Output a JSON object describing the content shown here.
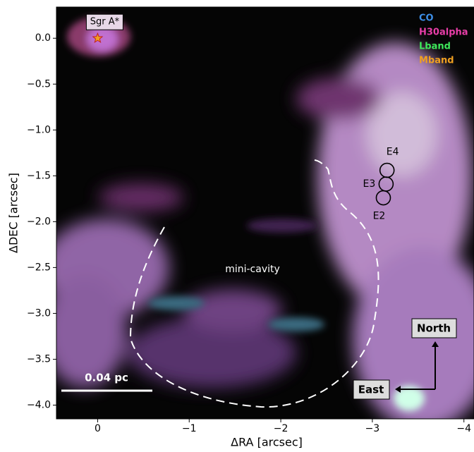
{
  "chart_data": {
    "type": "image",
    "xlabel": "ΔRA [arcsec]",
    "ylabel": "ΔDEC [arcsec]",
    "xlim": [
      0.45,
      -4.11
    ],
    "ylim": [
      -4.15,
      0.34
    ],
    "xticks": [
      {
        "value": 0,
        "label": "0"
      },
      {
        "value": -1,
        "label": "−1"
      },
      {
        "value": -2,
        "label": "−2"
      },
      {
        "value": -3,
        "label": "−3"
      },
      {
        "value": -4,
        "label": "−4"
      }
    ],
    "yticks": [
      {
        "value": 0,
        "label": "0.0"
      },
      {
        "value": -0.5,
        "label": "−0.5"
      },
      {
        "value": -1,
        "label": "−1.0"
      },
      {
        "value": -1.5,
        "label": "−1.5"
      },
      {
        "value": -2,
        "label": "−2.0"
      },
      {
        "value": -2.5,
        "label": "−2.5"
      },
      {
        "value": -3,
        "label": "−3.0"
      },
      {
        "value": -3.5,
        "label": "−3.5"
      },
      {
        "value": -4,
        "label": "−4.0"
      }
    ],
    "legend": [
      {
        "name": "CO",
        "color": "#3d8fe8"
      },
      {
        "name": "H30alpha",
        "color": "#e83ea8"
      },
      {
        "name": "Lband",
        "color": "#3ee85a"
      },
      {
        "name": "Mband",
        "color": "#f0a020"
      }
    ],
    "sgr_a": {
      "label": "Sgr A*",
      "x": 0,
      "y": 0
    },
    "sources": [
      {
        "label": "E4",
        "x": -3.16,
        "y": -1.44
      },
      {
        "label": "E3",
        "x": -3.15,
        "y": -1.59
      },
      {
        "label": "E2",
        "x": -3.12,
        "y": -1.74
      }
    ],
    "region_label": "mini-cavity",
    "scale_label": "0.04 pc",
    "north_label": "North",
    "east_label": "East"
  }
}
